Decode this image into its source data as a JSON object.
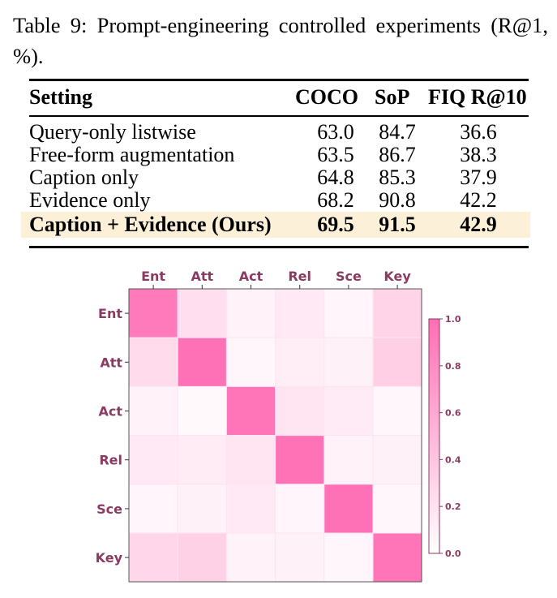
{
  "caption": "Table 9: Prompt-engineering controlled experiments (R@1, %).",
  "table": {
    "headers": [
      "Setting",
      "COCO",
      "SoP",
      "FIQ R@10"
    ],
    "rows": [
      {
        "setting": "Query-only listwise",
        "coco": "63.0",
        "sop": "84.7",
        "fiq": "36.6",
        "highlight": false
      },
      {
        "setting": "Free-form augmentation",
        "coco": "63.5",
        "sop": "86.7",
        "fiq": "38.3",
        "highlight": false
      },
      {
        "setting": "Caption only",
        "coco": "64.8",
        "sop": "85.3",
        "fiq": "37.9",
        "highlight": false
      },
      {
        "setting": "Evidence only",
        "coco": "68.2",
        "sop": "90.8",
        "fiq": "42.2",
        "highlight": false
      },
      {
        "setting": "Caption + Evidence (Ours)",
        "coco": "69.5",
        "sop": "91.5",
        "fiq": "42.9",
        "highlight": true
      }
    ],
    "highlight_color": "#fdf0d8"
  },
  "chart_data": {
    "type": "heatmap",
    "x_labels": [
      "Ent",
      "Att",
      "Act",
      "Rel",
      "Sce",
      "Key"
    ],
    "y_labels": [
      "Ent",
      "Att",
      "Act",
      "Rel",
      "Sce",
      "Key"
    ],
    "values": [
      [
        0.92,
        0.22,
        0.08,
        0.15,
        0.07,
        0.3
      ],
      [
        0.25,
        0.98,
        0.06,
        0.12,
        0.1,
        0.33
      ],
      [
        0.08,
        0.04,
        0.95,
        0.18,
        0.14,
        0.06
      ],
      [
        0.15,
        0.13,
        0.18,
        0.97,
        0.08,
        0.1
      ],
      [
        0.07,
        0.1,
        0.15,
        0.07,
        0.98,
        0.06
      ],
      [
        0.28,
        0.32,
        0.08,
        0.1,
        0.06,
        0.95
      ]
    ],
    "colorbar": {
      "min": 0.0,
      "max": 1.0,
      "ticks": [
        "0.0",
        "0.2",
        "0.4",
        "0.6",
        "0.8",
        "1.0"
      ]
    },
    "colors": {
      "low": "#ffffff",
      "high": "#ff6eb4",
      "label": "#8b3a62"
    }
  }
}
